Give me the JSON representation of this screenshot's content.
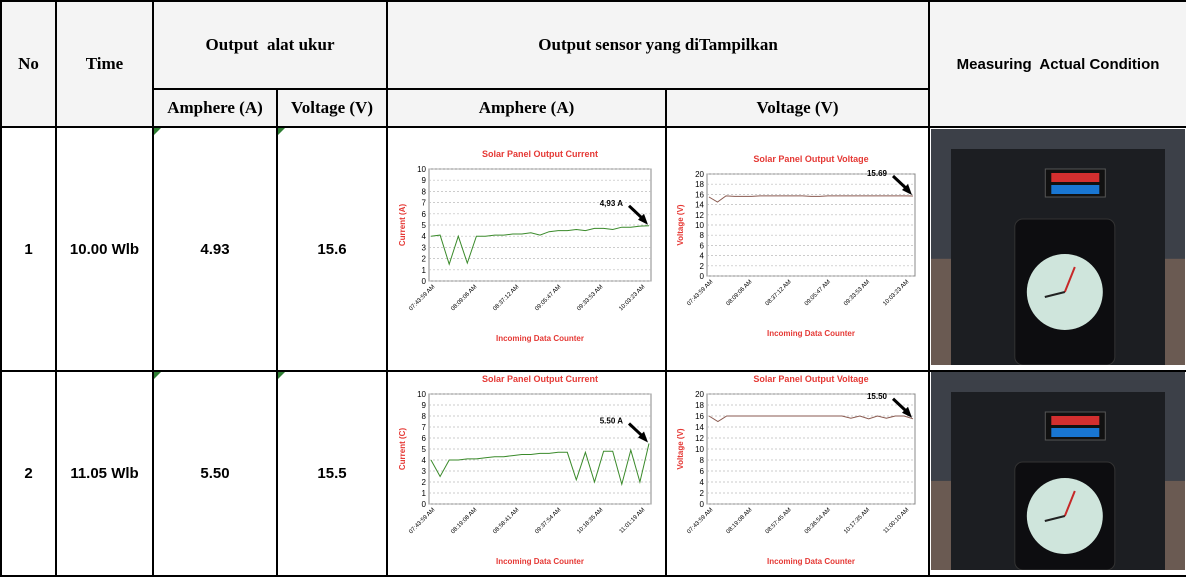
{
  "header": {
    "no": "No",
    "time": "Time",
    "group1": "Output  alat ukur",
    "group2": "Output sensor yang diTampilkan",
    "measuring": "Measuring  Actual Condition",
    "sub": [
      "Amphere (A)",
      "Voltage (V)",
      "Amphere (A)",
      "Voltage (V)"
    ]
  },
  "table": {
    "rows": [
      [
        "1",
        "10.00 Wlb",
        "4.93",
        "15.6"
      ],
      [
        "2",
        "11.05 Wlb",
        "5.50",
        "15.5"
      ]
    ]
  },
  "charts": [
    {
      "type": "line",
      "title": "Solar Panel Output Current",
      "y_label": "Current (A)",
      "x_label": "Incoming Data Counter",
      "color": "#3a8a2a",
      "ylim": [
        0,
        10
      ],
      "yticks": [
        0,
        1,
        2,
        3,
        4,
        5,
        6,
        7,
        8,
        9,
        10
      ],
      "xtick_labels": [
        "07:43:59 AM",
        "08:09:06 AM",
        "08:37:12 AM",
        "09:05:47 AM",
        "09:33:53 AM",
        "10:03:23 AM"
      ],
      "annotation": "4,93 A",
      "values": [
        4,
        4.1,
        1.5,
        4,
        1.6,
        4,
        4,
        4.1,
        4.1,
        4.2,
        4.2,
        4.3,
        4.1,
        4.4,
        4.5,
        4.5,
        4.6,
        4.5,
        4.7,
        4.7,
        4.6,
        4.8,
        4.8,
        4.9,
        4.93
      ]
    },
    {
      "type": "line",
      "title": "Solar Panel Output Voltage",
      "y_label": "Voltage (V)",
      "x_label": "Incoming Data Counter",
      "color": "#8a5a50",
      "ylim": [
        0,
        20
      ],
      "yticks": [
        0,
        2,
        4,
        6,
        8,
        10,
        12,
        14,
        16,
        18,
        20
      ],
      "xtick_labels": [
        "07:43:59 AM",
        "08:09:06 AM",
        "08:37:12 AM",
        "09:05:47 AM",
        "09:33:53 AM",
        "10:03:23 AM"
      ],
      "annotation": "15.69",
      "values": [
        15.5,
        14.5,
        15.7,
        15.6,
        15.6,
        15.6,
        15.7,
        15.7,
        15.7,
        15.7,
        15.7,
        15.7,
        15.6,
        15.6,
        15.7,
        15.7,
        15.7,
        15.7,
        15.7,
        15.7,
        15.7,
        15.7,
        15.7,
        15.7,
        15.69
      ]
    },
    {
      "type": "line",
      "title": "Solar Panel Output Current",
      "y_label": "Current (C)",
      "x_label": "Incoming Data Counter",
      "color": "#3a8a2a",
      "ylim": [
        0,
        10
      ],
      "yticks": [
        0,
        1,
        2,
        3,
        4,
        5,
        6,
        7,
        8,
        9,
        10
      ],
      "xtick_labels": [
        "07:43:59 AM",
        "08:19:08 AM",
        "08:58:41 AM",
        "09:37:54 AM",
        "10:18:35 AM",
        "11:01:19 AM"
      ],
      "annotation": "5.50 A",
      "values": [
        4,
        2.5,
        4,
        4,
        4.1,
        4.1,
        4.2,
        4.3,
        4.3,
        4.4,
        4.5,
        4.5,
        4.6,
        4.6,
        4.7,
        4.7,
        2.2,
        4.7,
        2,
        4.8,
        4.8,
        1.8,
        4.9,
        2,
        5.5
      ]
    },
    {
      "type": "line",
      "title": "Solar Panel Output Voltage",
      "y_label": "Voltage (V)",
      "x_label": "Incoming Data Counter",
      "color": "#8a5a50",
      "ylim": [
        0,
        20
      ],
      "yticks": [
        0,
        2,
        4,
        6,
        8,
        10,
        12,
        14,
        16,
        18,
        20
      ],
      "xtick_labels": [
        "07:43:59 AM",
        "08:19:08 AM",
        "08:57:45 AM",
        "09:36:54 AM",
        "10:17:35 AM",
        "11:00:10 AM"
      ],
      "annotation": "15.50",
      "values": [
        16,
        15,
        16,
        16,
        16,
        16,
        16,
        16,
        16,
        16,
        16,
        16,
        16,
        16,
        16,
        16,
        15.6,
        16,
        15.5,
        16,
        15.6,
        16,
        16,
        15.5
      ]
    }
  ]
}
